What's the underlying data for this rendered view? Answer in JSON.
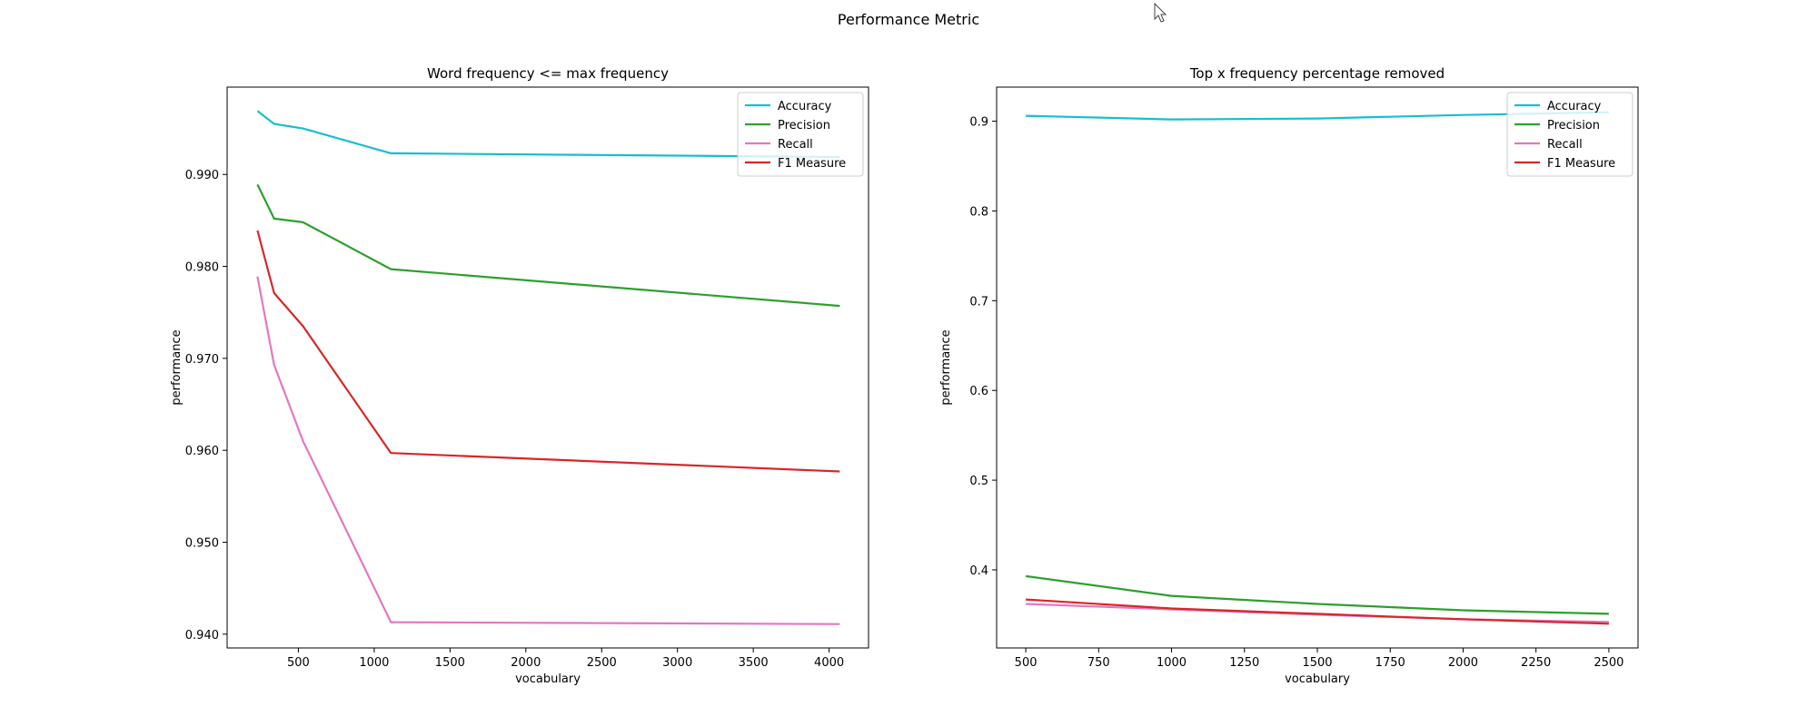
{
  "figure_title": "Performance Metric",
  "chart_data": [
    {
      "type": "line",
      "title": "Word frequency <= max frequency",
      "xlabel": "vocabulary",
      "ylabel": "performance",
      "xlim": [
        30,
        4260
      ],
      "ylim": [
        0.9385,
        0.9995
      ],
      "xticks": [
        500,
        1000,
        1500,
        2000,
        2500,
        3000,
        3500,
        4000
      ],
      "xtick_labels": [
        "500",
        "1000",
        "1500",
        "2000",
        "2500",
        "3000",
        "3500",
        "4000"
      ],
      "yticks": [
        0.94,
        0.95,
        0.96,
        0.97,
        0.98,
        0.99
      ],
      "ytick_labels": [
        "0.940",
        "0.950",
        "0.960",
        "0.970",
        "0.980",
        "0.990"
      ],
      "grid": false,
      "legend_position": "top-right",
      "x": [
        230,
        340,
        530,
        1110,
        4070
      ],
      "series": [
        {
          "name": "Accuracy",
          "color": "#17becf",
          "values": [
            0.9969,
            0.9955,
            0.995,
            0.9923,
            0.9919
          ]
        },
        {
          "name": "Precision",
          "color": "#2ca02c",
          "values": [
            0.9889,
            0.9852,
            0.9848,
            0.9797,
            0.9757
          ]
        },
        {
          "name": "Recall",
          "color": "#e377c2",
          "values": [
            0.9789,
            0.9693,
            0.961,
            0.9413,
            0.9411
          ]
        },
        {
          "name": "F1 Measure",
          "color": "#d62728",
          "values": [
            0.9839,
            0.9771,
            0.9735,
            0.9597,
            0.9577
          ]
        }
      ]
    },
    {
      "type": "line",
      "title": "Top x frequency percentage removed",
      "xlabel": "vocabulary",
      "ylabel": "performance",
      "xlim": [
        400,
        2600
      ],
      "ylim": [
        0.313,
        0.938
      ],
      "xticks": [
        500,
        750,
        1000,
        1250,
        1500,
        1750,
        2000,
        2250,
        2500
      ],
      "xtick_labels": [
        "500",
        "750",
        "1000",
        "1250",
        "1500",
        "1750",
        "2000",
        "2250",
        "2500"
      ],
      "yticks": [
        0.4,
        0.5,
        0.6,
        0.7,
        0.8,
        0.9
      ],
      "ytick_labels": [
        "0.4",
        "0.5",
        "0.6",
        "0.7",
        "0.8",
        "0.9"
      ],
      "grid": false,
      "legend_position": "top-right",
      "x": [
        500,
        1000,
        1500,
        2000,
        2500
      ],
      "series": [
        {
          "name": "Accuracy",
          "color": "#17becf",
          "values": [
            0.906,
            0.902,
            0.903,
            0.907,
            0.91
          ]
        },
        {
          "name": "Precision",
          "color": "#2ca02c",
          "values": [
            0.393,
            0.371,
            0.362,
            0.355,
            0.351
          ]
        },
        {
          "name": "Recall",
          "color": "#e377c2",
          "values": [
            0.362,
            0.356,
            0.35,
            0.345,
            0.342
          ]
        },
        {
          "name": "F1 Measure",
          "color": "#d62728",
          "values": [
            0.367,
            0.357,
            0.351,
            0.345,
            0.34
          ]
        }
      ]
    }
  ]
}
